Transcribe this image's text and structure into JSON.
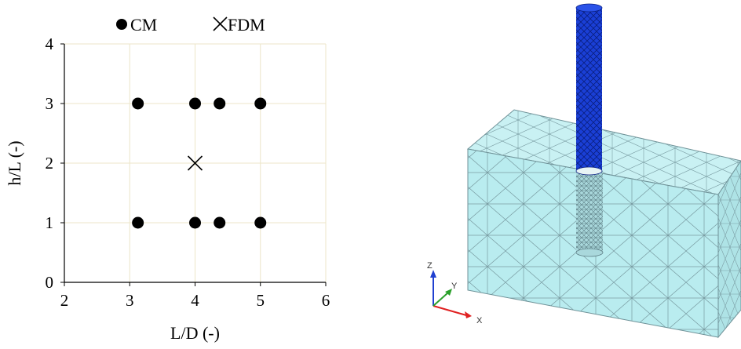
{
  "chart_data": {
    "type": "scatter",
    "xlabel": "L/D (-)",
    "ylabel": "h/L (-)",
    "xlim": [
      2,
      6
    ],
    "ylim": [
      0,
      4
    ],
    "x_ticks": [
      "2",
      "3",
      "4",
      "5",
      "6"
    ],
    "y_ticks": [
      "0",
      "1",
      "2",
      "3",
      "4"
    ],
    "grid": true,
    "legend_position": "top",
    "series": [
      {
        "name": "CM",
        "marker": "circle",
        "color": "#000000",
        "points": [
          {
            "x": 3.125,
            "y": 1
          },
          {
            "x": 4.0,
            "y": 1
          },
          {
            "x": 4.375,
            "y": 1
          },
          {
            "x": 5.0,
            "y": 1
          },
          {
            "x": 3.125,
            "y": 3
          },
          {
            "x": 4.0,
            "y": 3
          },
          {
            "x": 4.375,
            "y": 3
          },
          {
            "x": 5.0,
            "y": 3
          }
        ]
      },
      {
        "name": "FDM",
        "marker": "cross",
        "color": "#000000",
        "points": [
          {
            "x": 4.0,
            "y": 2
          }
        ]
      }
    ]
  },
  "model_view": {
    "pile_color": "#1a3fd6",
    "soil_color": "#b9ecef",
    "mesh_color": "#7a9da3",
    "triad": {
      "x_label": "X",
      "y_label": "Y",
      "z_label": "Z",
      "x_color": "#e02020",
      "y_color": "#2aa02a",
      "z_color": "#2040d0"
    }
  }
}
